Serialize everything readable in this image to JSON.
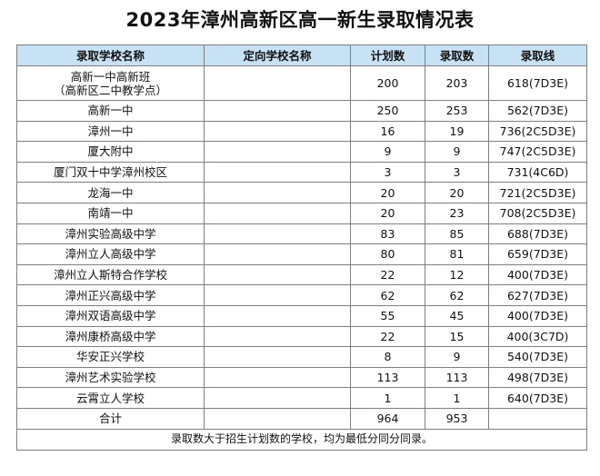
{
  "title": "2023年漳州高新区高一新生录取情况表",
  "headers": {
    "school": "录取学校名称",
    "directed": "定向学校名称",
    "plan": "计划数",
    "admitted": "录取数",
    "cutoff": "录取线"
  },
  "rows": [
    {
      "school": "高新一中高新班",
      "school_sub": "（高新区二中教学点）",
      "directed": "",
      "plan": "200",
      "admitted": "203",
      "cutoff": "618(7D3E)"
    },
    {
      "school": "高新一中",
      "directed": "",
      "plan": "250",
      "admitted": "253",
      "cutoff": "562(7D3E)"
    },
    {
      "school": "漳州一中",
      "directed": "",
      "plan": "16",
      "admitted": "19",
      "cutoff": "736(2C5D3E)"
    },
    {
      "school": "厦大附中",
      "directed": "",
      "plan": "9",
      "admitted": "9",
      "cutoff": "747(2C5D3E)"
    },
    {
      "school": "厦门双十中学漳州校区",
      "directed": "",
      "plan": "3",
      "admitted": "3",
      "cutoff": "731(4C6D)"
    },
    {
      "school": "龙海一中",
      "directed": "",
      "plan": "20",
      "admitted": "20",
      "cutoff": "721(2C5D3E)"
    },
    {
      "school": "南靖一中",
      "directed": "",
      "plan": "20",
      "admitted": "23",
      "cutoff": "708(2C5D3E)"
    },
    {
      "school": "漳州实验高级中学",
      "directed": "",
      "plan": "83",
      "admitted": "85",
      "cutoff": "688(7D3E)"
    },
    {
      "school": "漳州立人高级中学",
      "directed": "",
      "plan": "80",
      "admitted": "81",
      "cutoff": "659(7D3E)"
    },
    {
      "school": "漳州立人斯特合作学校",
      "directed": "",
      "plan": "22",
      "admitted": "12",
      "cutoff": "400(7D3E)"
    },
    {
      "school": "漳州正兴高级中学",
      "directed": "",
      "plan": "62",
      "admitted": "62",
      "cutoff": "627(7D3E)"
    },
    {
      "school": "漳州双语高级中学",
      "directed": "",
      "plan": "55",
      "admitted": "45",
      "cutoff": "400(7D3E)"
    },
    {
      "school": "漳州康桥高级中学",
      "directed": "",
      "plan": "22",
      "admitted": "15",
      "cutoff": "400(3C7D)"
    },
    {
      "school": "华安正兴学校",
      "directed": "",
      "plan": "8",
      "admitted": "9",
      "cutoff": "540(7D3E)"
    },
    {
      "school": "漳州艺术实验学校",
      "directed": "",
      "plan": "113",
      "admitted": "113",
      "cutoff": "498(7D3E)"
    },
    {
      "school": "云霄立人学校",
      "directed": "",
      "plan": "1",
      "admitted": "1",
      "cutoff": "640(7D3E)"
    }
  ],
  "total": {
    "label": "合计",
    "directed": "",
    "plan": "964",
    "admitted": "953",
    "cutoff": ""
  },
  "note": "录取数大于招生计划数的学校，均为最低分同分同录。",
  "colors": {
    "header_bg": "#c6e2f4",
    "border": "#7f7f7f"
  }
}
